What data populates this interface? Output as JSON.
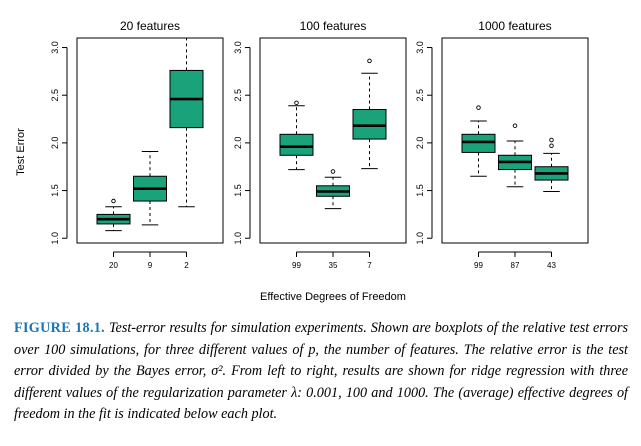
{
  "chart_data": {
    "type": "boxplot",
    "ylabel": "Test Error",
    "xlabel": "Effective Degrees of Freedom",
    "ylim": [
      0.95,
      3.1
    ],
    "yticks": [
      "1.0",
      "1.5",
      "2.0",
      "2.5",
      "3.0"
    ],
    "box_color": "#1aa37a",
    "panels": [
      {
        "title": "20 features",
        "categories": [
          "20",
          "9",
          "2"
        ],
        "boxes": [
          {
            "whisker_low": 1.08,
            "q1": 1.15,
            "median": 1.2,
            "q3": 1.25,
            "whisker_high": 1.33,
            "outliers": [
              1.39
            ]
          },
          {
            "whisker_low": 1.14,
            "q1": 1.39,
            "median": 1.52,
            "q3": 1.65,
            "whisker_high": 1.91,
            "outliers": []
          },
          {
            "whisker_low": 1.33,
            "q1": 2.16,
            "median": 2.46,
            "q3": 2.76,
            "whisker_high": 3.1,
            "outliers": []
          }
        ]
      },
      {
        "title": "100 features",
        "categories": [
          "99",
          "35",
          "7"
        ],
        "boxes": [
          {
            "whisker_low": 1.72,
            "q1": 1.87,
            "median": 1.96,
            "q3": 2.09,
            "whisker_high": 2.39,
            "outliers": [
              2.42
            ]
          },
          {
            "whisker_low": 1.31,
            "q1": 1.44,
            "median": 1.49,
            "q3": 1.55,
            "whisker_high": 1.64,
            "outliers": [
              1.7
            ]
          },
          {
            "whisker_low": 1.73,
            "q1": 2.04,
            "median": 2.18,
            "q3": 2.35,
            "whisker_high": 2.73,
            "outliers": [
              2.86
            ]
          }
        ]
      },
      {
        "title": "1000 features",
        "categories": [
          "99",
          "87",
          "43"
        ],
        "boxes": [
          {
            "whisker_low": 1.65,
            "q1": 1.9,
            "median": 2.01,
            "q3": 2.09,
            "whisker_high": 2.23,
            "outliers": [
              2.37
            ]
          },
          {
            "whisker_low": 1.54,
            "q1": 1.72,
            "median": 1.8,
            "q3": 1.87,
            "whisker_high": 2.02,
            "outliers": [
              2.18
            ]
          },
          {
            "whisker_low": 1.49,
            "q1": 1.61,
            "median": 1.68,
            "q3": 1.75,
            "whisker_high": 1.89,
            "outliers": [
              1.97,
              2.03
            ]
          }
        ]
      }
    ]
  },
  "caption": {
    "label": "FIGURE 18.1.",
    "text": "Test-error results for simulation experiments. Shown are boxplots of the relative test errors over 100 simulations, for three different values of p, the number of features. The relative error is the test error divided by the Bayes error, σ². From left to right, results are shown for ridge regression with three different values of the regularization parameter λ: 0.001, 100 and 1000. The (average) effective degrees of freedom in the fit is indicated below each plot."
  }
}
